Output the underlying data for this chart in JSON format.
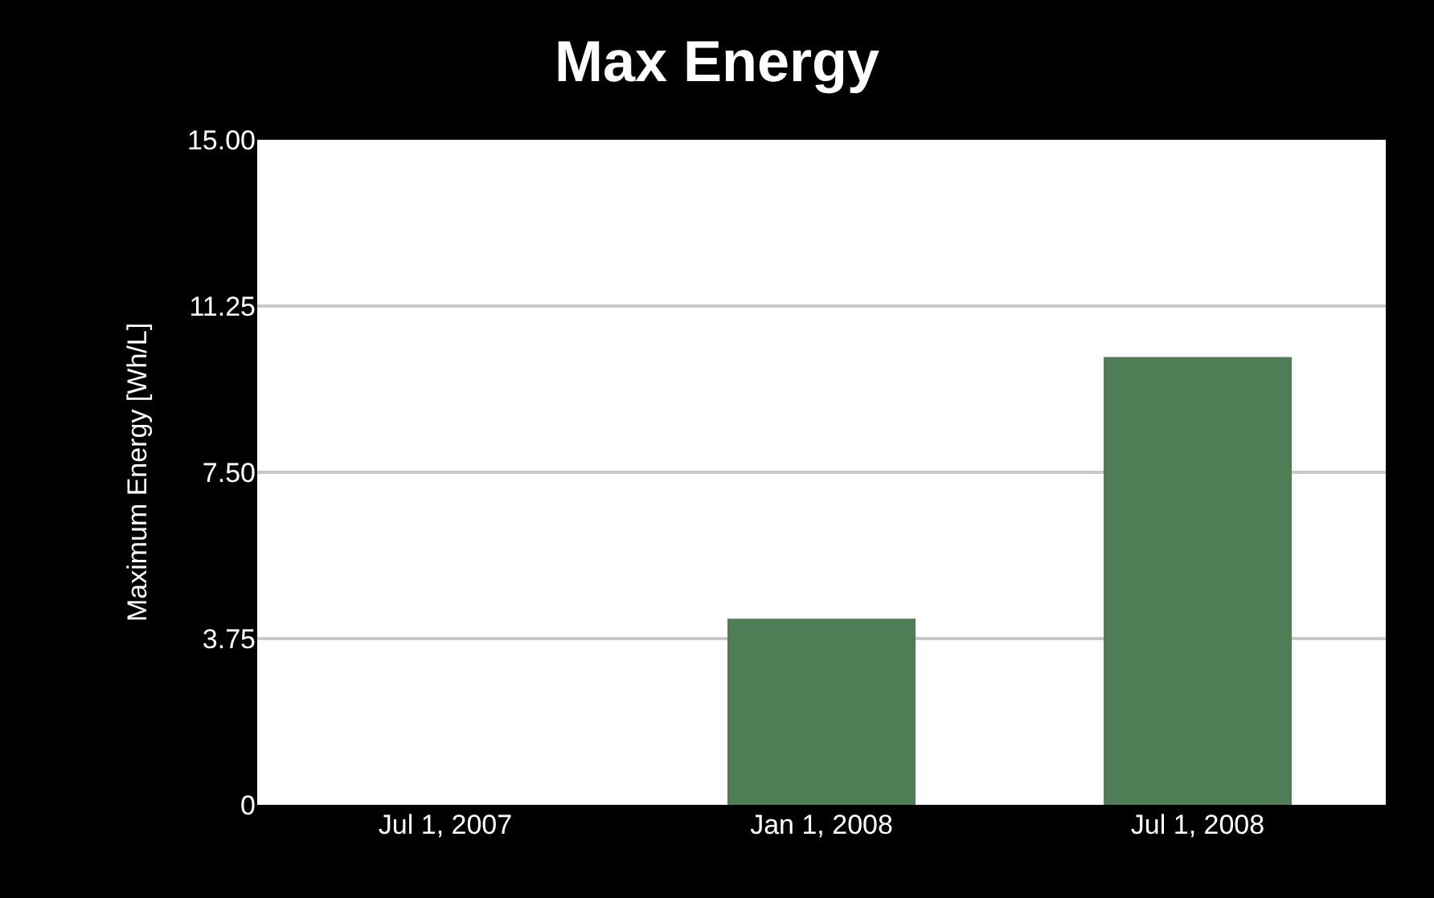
{
  "chart_data": {
    "type": "bar",
    "title": "Max Energy",
    "ylabel": "Maximum Energy [Wh/L]",
    "categories": [
      "Jul 1, 2007",
      "Jan 1, 2008",
      "Jul 1, 2008"
    ],
    "values": [
      0,
      4.2,
      10.1
    ],
    "color": "#4e7d56",
    "ylim": [
      0,
      15
    ],
    "yticks": [
      0,
      {
        "value": 3.75,
        "label": "3.75"
      },
      {
        "value": 7.5,
        "label": "7.50"
      },
      {
        "value": 11.25,
        "label": "11.25"
      },
      {
        "value": 15,
        "label": "15.00"
      }
    ],
    "grid": "y"
  }
}
